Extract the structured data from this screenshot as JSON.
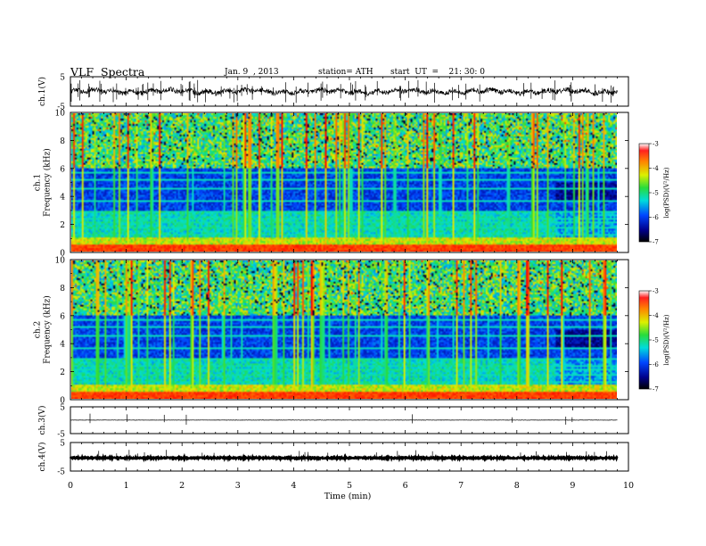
{
  "header": {
    "title": "VLF  Spectra",
    "date": "Jan. 9  , 2013",
    "station": "station= ATH",
    "start": "start  UT  =    21: 30: 0"
  },
  "chart_data": [
    {
      "type": "line",
      "name": "ch1-waveform",
      "ylabel": "ch.1(V)",
      "ylim": [
        -5,
        5
      ],
      "yticks": [
        "5",
        "-5"
      ],
      "xlim": [
        0,
        10
      ],
      "x_end": 9.8
    },
    {
      "type": "heatmap",
      "name": "ch1-spectrogram",
      "ylabel": "ch.1\nFrequency  (kHz)",
      "ylim": [
        0,
        10
      ],
      "yticks": [
        "0",
        "2",
        "4",
        "6",
        "8",
        "10"
      ],
      "xlim": [
        0,
        10
      ],
      "x_end": 9.8,
      "colorbar": {
        "label": "log(PSD)(V²/Hz)",
        "range": [
          -7,
          -3
        ],
        "ticks": [
          "-3",
          "-4",
          "-5",
          "-6",
          "-7"
        ]
      }
    },
    {
      "type": "heatmap",
      "name": "ch2-spectrogram",
      "ylabel": "ch.2\nFrequency  (kHz)",
      "ylim": [
        0,
        10
      ],
      "yticks": [
        "0",
        "2",
        "4",
        "6",
        "8",
        "10"
      ],
      "xlim": [
        0,
        10
      ],
      "x_end": 9.8,
      "colorbar": {
        "label": "log(PSD)(V²/Hz)",
        "range": [
          -7,
          -3
        ],
        "ticks": [
          "-3",
          "-4",
          "-5",
          "-6",
          "-7"
        ]
      }
    },
    {
      "type": "line",
      "name": "ch3-waveform",
      "ylabel": "ch.3(V)",
      "ylim": [
        -5,
        5
      ],
      "yticks": [
        "5",
        "-5"
      ],
      "xlim": [
        0,
        10
      ],
      "x_end": 9.8
    },
    {
      "type": "line",
      "name": "ch4-waveform",
      "ylabel": "ch.4(V)",
      "ylim": [
        -5,
        5
      ],
      "yticks": [
        "5",
        "-5"
      ],
      "xlim": [
        0,
        10
      ],
      "x_end": 9.8
    }
  ],
  "xaxis": {
    "label": "Time  (min)",
    "range": [
      0,
      10
    ],
    "ticks": [
      "0",
      "1",
      "2",
      "3",
      "4",
      "5",
      "6",
      "7",
      "8",
      "9",
      "10"
    ]
  }
}
